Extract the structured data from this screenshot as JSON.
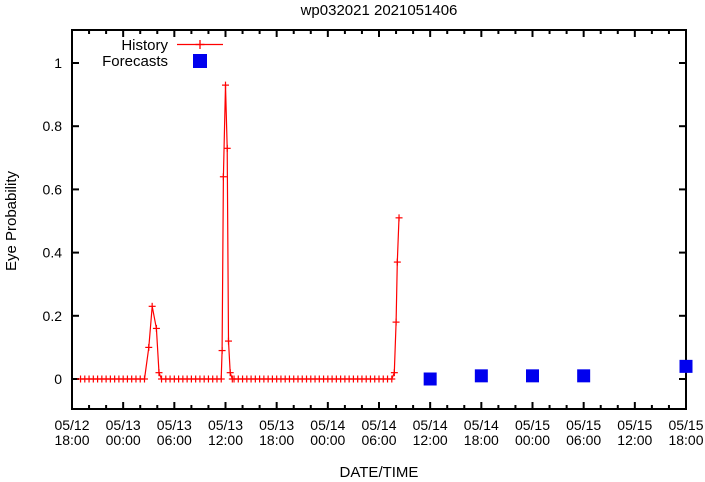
{
  "chart_data": {
    "type": "line",
    "title": "wp032021 2021051406",
    "xlabel": "DATE/TIME",
    "ylabel": "Eye Probability",
    "legend_position": "top-left-inside",
    "x_axis": {
      "unit": "hours since 05/12 18:00",
      "range_hours": [
        0,
        72
      ],
      "major_tick_every_hours": 6,
      "minor_tick_every_hours": 2,
      "tick_labels": [
        {
          "hour": 0,
          "date": "05/12",
          "time": "18:00"
        },
        {
          "hour": 6,
          "date": "05/13",
          "time": "00:00"
        },
        {
          "hour": 12,
          "date": "05/13",
          "time": "06:00"
        },
        {
          "hour": 18,
          "date": "05/13",
          "time": "12:00"
        },
        {
          "hour": 24,
          "date": "05/13",
          "time": "18:00"
        },
        {
          "hour": 30,
          "date": "05/14",
          "time": "00:00"
        },
        {
          "hour": 36,
          "date": "05/14",
          "time": "06:00"
        },
        {
          "hour": 42,
          "date": "05/14",
          "time": "12:00"
        },
        {
          "hour": 48,
          "date": "05/14",
          "time": "18:00"
        },
        {
          "hour": 54,
          "date": "05/15",
          "time": "00:00"
        },
        {
          "hour": 60,
          "date": "05/15",
          "time": "06:00"
        },
        {
          "hour": 66,
          "date": "05/15",
          "time": "12:00"
        },
        {
          "hour": 72,
          "date": "05/15",
          "time": "18:00"
        }
      ]
    },
    "y_axis": {
      "range": [
        -0.095,
        1.105
      ],
      "ticks": [
        {
          "value": 0,
          "label": "0"
        },
        {
          "value": 0.2,
          "label": "0.2"
        },
        {
          "value": 0.4,
          "label": "0.4"
        },
        {
          "value": 0.6,
          "label": "0.6"
        },
        {
          "value": 0.8,
          "label": "0.8"
        },
        {
          "value": 1,
          "label": "1"
        }
      ]
    },
    "series": [
      {
        "name": "History",
        "color": "#ff0000",
        "style": "line-with-plus-markers",
        "zero_sample_step_hours": 0.5,
        "zero_runs_hours": [
          [
            1.0,
            8.5
          ],
          [
            10.5,
            17.5
          ],
          [
            19.0,
            37.5
          ]
        ],
        "points": [
          [
            9.0,
            0.1
          ],
          [
            9.4,
            0.23
          ],
          [
            9.9,
            0.16
          ],
          [
            10.2,
            0.02
          ],
          [
            17.6,
            0.09
          ],
          [
            17.75,
            0.64
          ],
          [
            18.0,
            0.93
          ],
          [
            18.2,
            0.73
          ],
          [
            18.35,
            0.12
          ],
          [
            18.55,
            0.02
          ],
          [
            18.8,
            0.0
          ],
          [
            37.8,
            0.02
          ],
          [
            38.0,
            0.18
          ],
          [
            38.15,
            0.37
          ],
          [
            38.35,
            0.51
          ]
        ]
      },
      {
        "name": "Forecasts",
        "color": "#0000ee",
        "style": "filled-squares",
        "square_size_px": 13,
        "points": [
          [
            42,
            0.0
          ],
          [
            48,
            0.01
          ],
          [
            54,
            0.01
          ],
          [
            60,
            0.01
          ],
          [
            72,
            0.04
          ]
        ]
      }
    ],
    "axis_color": "#000000"
  }
}
